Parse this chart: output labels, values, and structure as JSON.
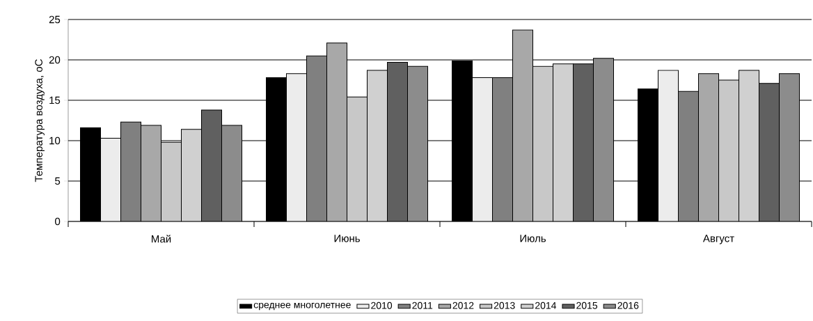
{
  "chart_data": {
    "type": "bar",
    "ylabel": "Температура воздуха, оС",
    "categories": [
      "Май",
      "Июнь",
      "Июль",
      "Август"
    ],
    "series": [
      {
        "name": "среднее многолетнее",
        "color": "#000000",
        "values": [
          11.6,
          17.8,
          19.9,
          16.4
        ]
      },
      {
        "name": "2010",
        "color": "#ececec",
        "values": [
          10.3,
          18.3,
          17.8,
          18.7
        ]
      },
      {
        "name": "2011",
        "color": "#808080",
        "values": [
          12.3,
          20.5,
          17.8,
          16.1
        ]
      },
      {
        "name": "2012",
        "color": "#a8a8a8",
        "values": [
          11.9,
          22.1,
          23.7,
          18.3
        ]
      },
      {
        "name": "2013",
        "color": "#c8c8c8",
        "values": [
          9.8,
          15.4,
          19.2,
          17.5
        ]
      },
      {
        "name": "2014",
        "color": "#d0d0d0",
        "values": [
          11.4,
          18.7,
          19.5,
          18.7
        ]
      },
      {
        "name": "2015",
        "color": "#606060",
        "values": [
          13.8,
          19.7,
          19.5,
          17.1
        ]
      },
      {
        "name": "2016",
        "color": "#8c8c8c",
        "values": [
          11.9,
          19.2,
          20.2,
          18.3
        ]
      }
    ],
    "ylim": [
      0,
      25
    ],
    "yticks": [
      0,
      5,
      10,
      15,
      20,
      25
    ],
    "grid": "y",
    "legend": "bottom"
  }
}
